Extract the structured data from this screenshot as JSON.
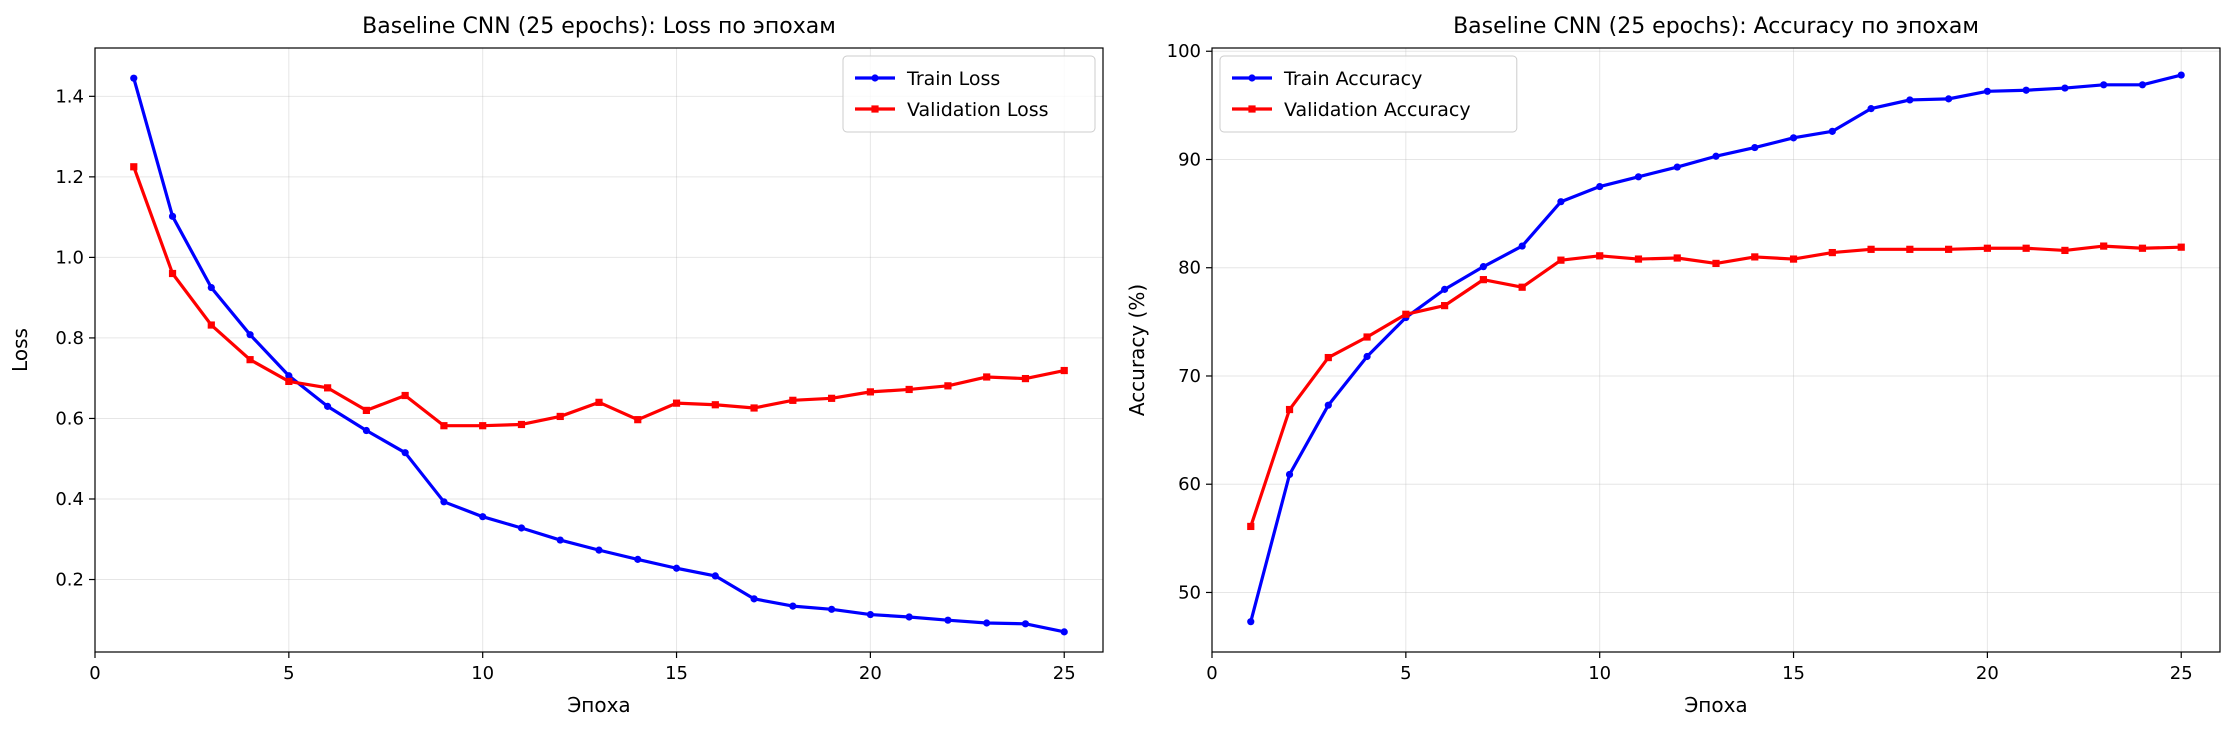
{
  "chart_data": [
    {
      "type": "line",
      "title": "Baseline CNN (25 epochs): Loss по эпохам",
      "xlabel": "Эпоха",
      "ylabel": "Loss",
      "xlim": [
        0,
        26
      ],
      "ylim": [
        0.02,
        1.52
      ],
      "xticks": [
        0,
        5,
        10,
        15,
        20,
        25
      ],
      "yticks": [
        0.2,
        0.4,
        0.6,
        0.8,
        1.0,
        1.2,
        1.4
      ],
      "ytick_labels": [
        "0.2",
        "0.4",
        "0.6",
        "0.8",
        "1.0",
        "1.2",
        "1.4"
      ],
      "grid": true,
      "legend_position": "top-right",
      "x": [
        1,
        2,
        3,
        4,
        5,
        6,
        7,
        8,
        9,
        10,
        11,
        12,
        13,
        14,
        15,
        16,
        17,
        18,
        19,
        20,
        21,
        22,
        23,
        24,
        25
      ],
      "series": [
        {
          "name": "Train Loss",
          "color": "#0000ff",
          "marker": "circle",
          "values": [
            1.445,
            1.102,
            0.925,
            0.808,
            0.706,
            0.63,
            0.57,
            0.515,
            0.393,
            0.356,
            0.328,
            0.298,
            0.273,
            0.25,
            0.228,
            0.209,
            0.152,
            0.134,
            0.126,
            0.113,
            0.107,
            0.099,
            0.092,
            0.09,
            0.07
          ]
        },
        {
          "name": "Validation Loss",
          "color": "#ff0000",
          "marker": "square",
          "values": [
            1.225,
            0.96,
            0.832,
            0.746,
            0.692,
            0.676,
            0.62,
            0.657,
            0.582,
            0.582,
            0.585,
            0.605,
            0.64,
            0.597,
            0.638,
            0.634,
            0.626,
            0.645,
            0.65,
            0.666,
            0.672,
            0.681,
            0.703,
            0.699,
            0.719
          ]
        }
      ]
    },
    {
      "type": "line",
      "title": "Baseline CNN (25 epochs): Accuracy по эпохам",
      "xlabel": "Эпоха",
      "ylabel": "Accuracy (%)",
      "xlim": [
        0,
        26
      ],
      "ylim": [
        44.5,
        100.3
      ],
      "xticks": [
        0,
        5,
        10,
        15,
        20,
        25
      ],
      "yticks": [
        50,
        60,
        70,
        80,
        90,
        100
      ],
      "ytick_labels": [
        "50",
        "60",
        "70",
        "80",
        "90",
        "100"
      ],
      "grid": true,
      "legend_position": "top-left",
      "x": [
        1,
        2,
        3,
        4,
        5,
        6,
        7,
        8,
        9,
        10,
        11,
        12,
        13,
        14,
        15,
        16,
        17,
        18,
        19,
        20,
        21,
        22,
        23,
        24,
        25
      ],
      "series": [
        {
          "name": "Train Accuracy",
          "color": "#0000ff",
          "marker": "circle",
          "values": [
            47.3,
            60.9,
            67.3,
            71.8,
            75.4,
            78.0,
            80.1,
            82.0,
            86.1,
            87.5,
            88.4,
            89.3,
            90.3,
            91.1,
            92.0,
            92.6,
            94.7,
            95.5,
            95.6,
            96.3,
            96.4,
            96.6,
            96.9,
            96.9,
            97.8
          ]
        },
        {
          "name": "Validation Accuracy",
          "color": "#ff0000",
          "marker": "square",
          "values": [
            56.1,
            66.9,
            71.7,
            73.6,
            75.7,
            76.5,
            78.9,
            78.2,
            80.7,
            81.1,
            80.8,
            80.9,
            80.4,
            81.0,
            80.8,
            81.4,
            81.7,
            81.7,
            81.7,
            81.8,
            81.8,
            81.6,
            82.0,
            81.8,
            81.9
          ]
        }
      ]
    }
  ]
}
